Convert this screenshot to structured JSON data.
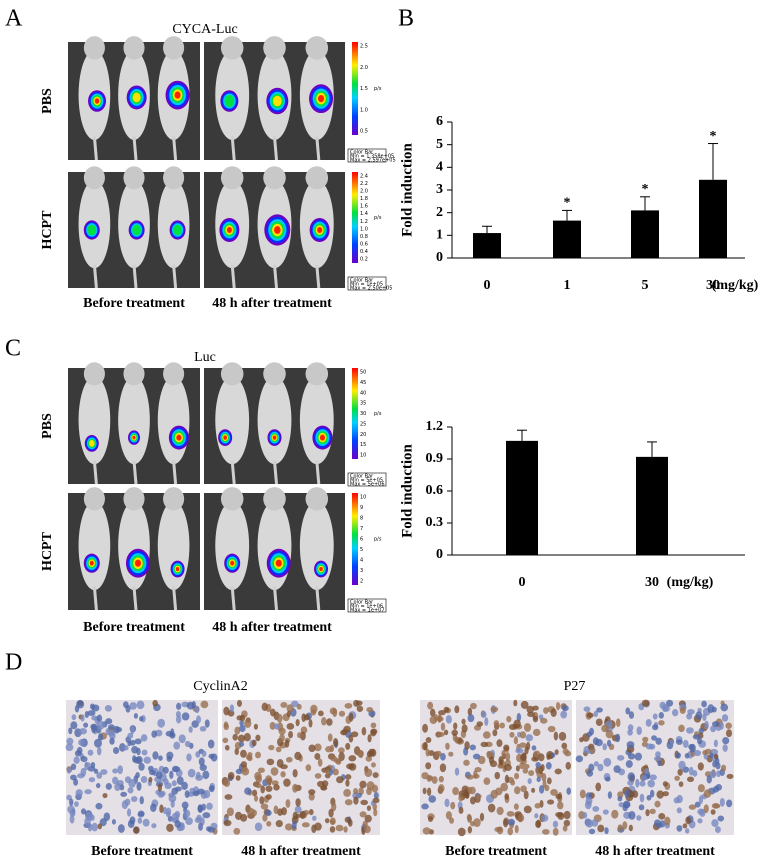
{
  "panels": {
    "A": {
      "label": "A",
      "title": "CYCA-Luc",
      "rows": [
        "PBS",
        "HCPT"
      ],
      "columns": [
        "Before treatment",
        "48 h after treatment"
      ],
      "colorbars": [
        {
          "ticks": [
            "2.5",
            "2.0",
            "1.5",
            "1.0",
            "0.5"
          ],
          "unit": "p/s",
          "box": [
            "Color Bar",
            "Min = 1.358e+05",
            "Max = 2.597e+05"
          ]
        },
        {
          "ticks": [
            "2.4",
            "2.2",
            "2.0",
            "1.8",
            "1.6",
            "1.4",
            "1.2",
            "1.0",
            "0.8",
            "0.6",
            "0.4",
            "0.2"
          ],
          "unit": "p/s",
          "box": [
            "Color Bar",
            "Min = 1e+05",
            "Max = 2.50e+05"
          ]
        }
      ]
    },
    "B": {
      "label": "B"
    },
    "C": {
      "label": "C",
      "title": "Luc",
      "rows": [
        "PBS",
        "HCPT"
      ],
      "columns": [
        "Before treatment",
        "48 h after treatment"
      ],
      "colorbars": [
        {
          "ticks": [
            "50",
            "45",
            "40",
            "35",
            "30",
            "25",
            "20",
            "15",
            "10"
          ],
          "unit": "p/s",
          "box": [
            "Color Bar",
            "Min = 5e+05",
            "Max = 5e+06"
          ]
        },
        {
          "ticks": [
            "10",
            "9",
            "8",
            "7",
            "6",
            "5",
            "4",
            "3",
            "2"
          ],
          "unit": "p/s",
          "box": [
            "Color Bar",
            "Min = 1e+06",
            "Max = 1e+07"
          ]
        }
      ]
    },
    "D": {
      "label": "D",
      "groups": [
        {
          "title": "CyclinA2",
          "columns": [
            "Before treatment",
            "48 h after treatment"
          ]
        },
        {
          "title": "P27",
          "columns": [
            "Before treatment",
            "48 h after treatment"
          ]
        }
      ]
    }
  },
  "chart_data": [
    {
      "type": "bar",
      "y_label": "Fold induction",
      "x_unit": "(mg/kg)",
      "categories": [
        "0",
        "1",
        "5",
        "30"
      ],
      "values": [
        1.1,
        1.65,
        2.1,
        3.45
      ],
      "errors": [
        0.3,
        0.45,
        0.6,
        1.6
      ],
      "significance": [
        null,
        "*",
        "*",
        "*"
      ],
      "color": "#000000",
      "ylim": [
        0,
        6
      ],
      "yticks": [
        0,
        1,
        2,
        3,
        4,
        5,
        6
      ]
    },
    {
      "type": "bar",
      "y_label": "Fold induction",
      "x_unit": "(mg/kg)",
      "categories": [
        "0",
        "30"
      ],
      "values": [
        1.07,
        0.92
      ],
      "errors": [
        0.1,
        0.14
      ],
      "color": "#000000",
      "ylim": [
        0,
        1.2
      ],
      "yticks": [
        0,
        0.3,
        0.6,
        0.9,
        1.2
      ]
    }
  ]
}
